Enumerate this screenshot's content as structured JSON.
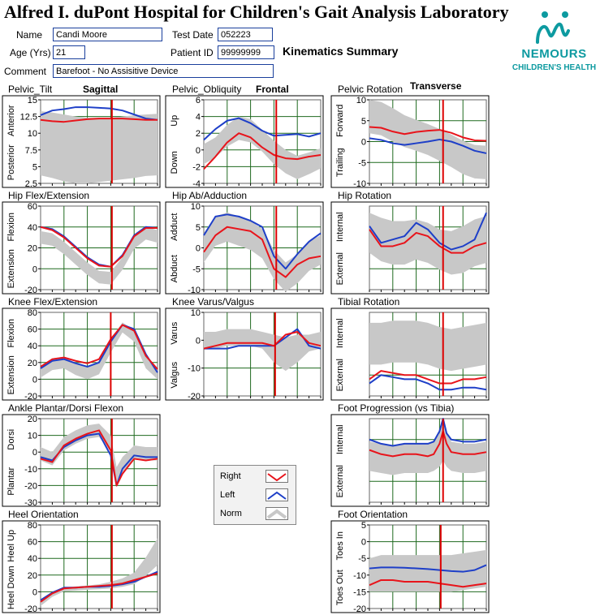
{
  "header": {
    "title": "Alfred I. duPont Hospital for Children's Gait Analysis Laboratory",
    "summary": "Kinematics Summary",
    "logo_name": "NEMOURS",
    "logo_sub": "CHILDREN'S HEALTH",
    "fields": {
      "name_label": "Name",
      "name": "Candi Moore",
      "test_date_label": "Test Date",
      "test_date": "052223",
      "age_label": "Age (Yrs)",
      "age": "21",
      "patient_id_label": "Patient ID",
      "patient_id": "99999999",
      "comment_label": "Comment",
      "comment": "Barefoot - No Assisitive Device"
    }
  },
  "planes": {
    "sagittal": "Sagittal",
    "frontal": "Frontal",
    "transverse": "Transverse"
  },
  "legend": {
    "right": "Right",
    "left": "Left",
    "norm": "Norm"
  },
  "colors": {
    "right": "#e8141b",
    "left": "#1e3fc8",
    "norm": "#c8c8c8",
    "grid": "#1f6a1f",
    "toe_off_line": "#dd0000"
  },
  "chart_data": [
    {
      "id": "pelvic-tilt",
      "type": "line",
      "title": "Pelvic_Tilt",
      "ylim": [
        2.5,
        15
      ],
      "yticks": [
        "15",
        "12.5",
        "10",
        "7.5",
        "5",
        "2.5"
      ],
      "ylabel_top": "Anterior",
      "ylabel_bottom": "Posterior",
      "toe_off": 61,
      "x": [
        0,
        10,
        20,
        30,
        40,
        50,
        60,
        70,
        80,
        90,
        100
      ],
      "right": [
        12,
        11.8,
        11.7,
        11.9,
        12.1,
        12.2,
        12.2,
        12.2,
        12.1,
        12,
        12
      ],
      "left": [
        12.7,
        13.4,
        13.6,
        13.9,
        13.9,
        13.8,
        13.7,
        13.4,
        12.8,
        12.2,
        12
      ],
      "norm_mean": [
        8.5,
        8.2,
        7.8,
        7.5,
        7.4,
        7.5,
        7.6,
        7.8,
        8,
        8.2,
        8.3
      ],
      "norm_sd": [
        4.8,
        4.9,
        5,
        5,
        4.9,
        4.8,
        4.7,
        4.7,
        4.7,
        4.6,
        4.6
      ]
    },
    {
      "id": "pelvic-obliquity",
      "type": "line",
      "title": "Pelvic_Obliquity",
      "ylim": [
        -4,
        6
      ],
      "yticks": [
        "6",
        "4",
        "2",
        "0",
        "-2",
        "-4"
      ],
      "ylabel_top": "Up",
      "ylabel_bottom": "Down",
      "toe_off": 62,
      "x": [
        0,
        10,
        20,
        30,
        40,
        50,
        60,
        70,
        80,
        90,
        100
      ],
      "right": [
        -2.3,
        -0.8,
        0.9,
        2,
        1.5,
        0.3,
        -0.6,
        -1,
        -1.1,
        -0.8,
        -0.6
      ],
      "left": [
        1.2,
        2.5,
        3.5,
        3.8,
        3.2,
        2.3,
        1.7,
        1.8,
        1.9,
        1.6,
        2
      ],
      "norm_mean": [
        -0.5,
        0.3,
        1.7,
        2.6,
        2.3,
        1.1,
        -0.3,
        -1.4,
        -2.1,
        -1.6,
        -1
      ],
      "norm_sd": [
        1.2,
        1.2,
        1.3,
        1.4,
        1.4,
        1.3,
        1.4,
        1.4,
        1.4,
        1.3,
        1.2
      ]
    },
    {
      "id": "pelvic-rotation",
      "type": "line",
      "title": "Pelvic Rotation",
      "ylim": [
        -10,
        10
      ],
      "yticks": [
        "10",
        "5",
        "0",
        "-5",
        "-10"
      ],
      "ylabel_top": "Forward",
      "ylabel_bottom": "Trailing",
      "toe_off": 63,
      "x": [
        0,
        10,
        20,
        30,
        40,
        50,
        60,
        70,
        80,
        90,
        100
      ],
      "right": [
        3.5,
        3.3,
        2.4,
        1.8,
        2.3,
        2.6,
        2.8,
        2.1,
        1,
        0.3,
        0.2
      ],
      "left": [
        0.8,
        0.4,
        -0.4,
        -0.8,
        -0.4,
        0,
        0.5,
        0,
        -1,
        -2.2,
        -2.8
      ],
      "norm_mean": [
        6,
        5.5,
        4,
        2.5,
        1.5,
        0.5,
        -0.8,
        -2.2,
        -3.8,
        -4.8,
        -5
      ],
      "norm_sd": [
        4,
        4,
        4,
        3.8,
        3.7,
        3.7,
        3.8,
        3.9,
        4,
        4,
        4
      ]
    },
    {
      "id": "hip-flex-extension",
      "type": "line",
      "title": "Hip Flex/Extension",
      "ylim": [
        -20,
        60
      ],
      "yticks": [
        "60",
        "40",
        "20",
        "0",
        "-20"
      ],
      "ylabel_top": "Flexion",
      "ylabel_bottom": "Extension",
      "toe_off": 61,
      "x": [
        0,
        10,
        20,
        30,
        40,
        50,
        60,
        70,
        80,
        90,
        100
      ],
      "right": [
        40,
        37,
        30,
        20,
        10,
        3,
        2,
        12,
        31,
        39,
        39
      ],
      "left": [
        40,
        38,
        31,
        21,
        11,
        4,
        2,
        13,
        32,
        40,
        39
      ],
      "norm_mean": [
        30,
        28,
        20,
        10,
        0,
        -8,
        -9,
        5,
        25,
        34,
        31
      ],
      "norm_sd": [
        6,
        6,
        6,
        6,
        6,
        6,
        6,
        6,
        6,
        6,
        6
      ]
    },
    {
      "id": "hip-ab-adduction",
      "type": "line",
      "title": "Hip Ab/Adduction",
      "ylim": [
        -10,
        10
      ],
      "yticks": [
        "10",
        "5",
        "0",
        "-5",
        "-10"
      ],
      "ylabel_top": "Adduct",
      "ylabel_bottom": "Abduct",
      "toe_off": 62,
      "x": [
        0,
        10,
        20,
        30,
        40,
        50,
        60,
        70,
        80,
        90,
        100
      ],
      "right": [
        -1,
        3,
        5,
        4.5,
        4,
        2,
        -5,
        -7,
        -4,
        -2.5,
        -2
      ],
      "left": [
        3,
        7.5,
        8,
        7.5,
        6.5,
        5,
        -2,
        -5,
        -1.5,
        1.5,
        3.5
      ],
      "norm_mean": [
        0,
        4,
        5,
        4,
        3,
        1,
        -4,
        -7,
        -5,
        -2,
        -0.5
      ],
      "norm_sd": [
        3.5,
        3.5,
        3.5,
        3.5,
        3.5,
        3.5,
        3.5,
        3.5,
        3.5,
        3.5,
        3.5
      ]
    },
    {
      "id": "hip-rotation",
      "type": "line",
      "title": "Hip Rotation",
      "ylim": [
        -15,
        10
      ],
      "yticks": [],
      "ylabel_top": "Internal",
      "ylabel_bottom": "External",
      "toe_off": 63,
      "x": [
        0,
        10,
        20,
        30,
        40,
        50,
        60,
        70,
        80,
        90,
        100
      ],
      "right": [
        3,
        -2,
        -2,
        -1,
        2,
        1,
        -2,
        -4,
        -4,
        -2,
        -1
      ],
      "left": [
        4,
        -1,
        0,
        1,
        5,
        3,
        -1,
        -3,
        -2,
        0,
        8
      ],
      "norm_mean": [
        2,
        0,
        -1,
        -1,
        0,
        -1,
        -3,
        -4,
        -3,
        -1,
        0
      ],
      "norm_sd": [
        6,
        6.5,
        6.5,
        6.5,
        6,
        6,
        6,
        6.5,
        7,
        7,
        7
      ]
    },
    {
      "id": "knee-flex-extension",
      "type": "line",
      "title": "Knee Flex/Extension",
      "ylim": [
        -20,
        80
      ],
      "yticks": [
        "80",
        "60",
        "40",
        "20",
        "0",
        "-20"
      ],
      "ylabel_top": "Flexion",
      "ylabel_bottom": "Extension",
      "toe_off": 60,
      "x": [
        0,
        10,
        20,
        30,
        40,
        50,
        60,
        70,
        80,
        90,
        100
      ],
      "right": [
        15,
        24,
        26,
        22,
        19,
        24,
        48,
        65,
        58,
        28,
        12
      ],
      "left": [
        13,
        22,
        24,
        19,
        15,
        20,
        45,
        65,
        60,
        30,
        8
      ],
      "norm_mean": [
        8,
        18,
        20,
        12,
        7,
        14,
        40,
        62,
        52,
        20,
        6
      ],
      "norm_sd": [
        6,
        7,
        7,
        7,
        7,
        8,
        8,
        6,
        7,
        7,
        6
      ]
    },
    {
      "id": "knee-varus-valgus",
      "type": "line",
      "title": "Knee Varus/Valgus",
      "ylim": [
        -20,
        10
      ],
      "yticks": [
        "10",
        "0",
        "-10",
        "-20"
      ],
      "ylabel_top": "Varus",
      "ylabel_bottom": "Valgus",
      "toe_off": 61,
      "x": [
        0,
        10,
        20,
        30,
        40,
        50,
        60,
        70,
        80,
        90,
        100
      ],
      "right": [
        -3,
        -2,
        -1,
        -1,
        -1,
        -1,
        -2,
        2,
        3,
        -1,
        -2
      ],
      "left": [
        -3,
        -3,
        -3,
        -2,
        -2,
        -2,
        -2,
        1,
        4,
        -2,
        -3
      ],
      "norm_mean": [
        0,
        0,
        1,
        1,
        1,
        0,
        -3,
        -5,
        -3,
        -1,
        0
      ],
      "norm_sd": [
        3,
        3,
        3,
        3,
        3,
        3,
        5,
        6,
        5,
        3,
        3
      ]
    },
    {
      "id": "tibial-rotation",
      "type": "line",
      "title": "Tibial Rotation",
      "ylim": [
        -30,
        10
      ],
      "yticks": [],
      "ylabel_top": "Internal",
      "ylabel_bottom": "External",
      "toe_off": 63,
      "x": [
        0,
        10,
        20,
        30,
        40,
        50,
        60,
        70,
        80,
        90,
        100
      ],
      "right": [
        -22,
        -18,
        -19,
        -20,
        -20,
        -22,
        -24,
        -24,
        -22,
        -22,
        -21
      ],
      "left": [
        -24,
        -20,
        -21,
        -22,
        -22,
        -24,
        -27,
        -27,
        -26,
        -26,
        -27
      ],
      "norm_mean": [
        -5,
        -5,
        -4,
        -4,
        -4,
        -5,
        -7,
        -8,
        -7,
        -6,
        -5
      ],
      "norm_sd": [
        10,
        10,
        10,
        10,
        10,
        10,
        10,
        10,
        10,
        10,
        10
      ]
    },
    {
      "id": "ankle-plantar-dorsi",
      "type": "line",
      "title": "Ankle Plantar/Dorsi Flexon",
      "ylim": [
        -30,
        20
      ],
      "yticks": [
        "20",
        "10",
        "0",
        "-10",
        "-20",
        "-30"
      ],
      "ylabel_top": "Dorsi",
      "ylabel_bottom": "Plantar",
      "toe_off": 61,
      "x": [
        0,
        10,
        20,
        30,
        40,
        50,
        60,
        65,
        70,
        80,
        90,
        100
      ],
      "right": [
        -4,
        -6,
        4,
        8,
        11,
        13,
        1,
        -20,
        -13,
        -4,
        -5,
        -4
      ],
      "left": [
        -3,
        -5,
        3,
        7,
        10,
        11,
        -2,
        -20,
        -10,
        -2,
        -3,
        -3
      ],
      "norm_mean": [
        -1,
        -4,
        5,
        9,
        12,
        13,
        5,
        -15,
        -8,
        0,
        -1,
        -1
      ],
      "norm_sd": [
        4,
        4,
        4,
        4,
        4,
        4,
        5,
        6,
        5,
        4,
        4,
        4
      ]
    },
    {
      "id": "foot-progression",
      "type": "line",
      "title": "Foot Progression (vs Tibia)",
      "ylim": [
        -20,
        20
      ],
      "yticks": [],
      "ylabel_top": "Internal",
      "ylabel_bottom": "External",
      "toe_off": 63,
      "x": [
        0,
        10,
        20,
        30,
        40,
        50,
        55,
        60,
        63,
        66,
        70,
        80,
        90,
        100
      ],
      "right": [
        5,
        3,
        2,
        3,
        3,
        2,
        3,
        8,
        14,
        8,
        4,
        3,
        3,
        4
      ],
      "left": [
        10,
        8,
        7,
        8,
        8,
        8,
        9,
        14,
        20,
        13,
        10,
        9,
        9,
        10
      ],
      "norm_mean": [
        2,
        1,
        0,
        1,
        1,
        1,
        2,
        5,
        9,
        5,
        2,
        1,
        1,
        2
      ],
      "norm_sd": [
        7,
        7,
        7,
        7,
        7,
        7,
        7,
        8,
        9,
        8,
        7,
        7,
        7,
        7
      ]
    },
    {
      "id": "heel-orientation",
      "type": "line",
      "title": "Heel Orientation",
      "ylim": [
        -20,
        80
      ],
      "yticks": [
        "80",
        "60",
        "40",
        "20",
        "0",
        "-20"
      ],
      "ylabel_top": "Heel Up",
      "ylabel_bottom": "Heel Down",
      "toe_off": 61,
      "x": [
        0,
        10,
        20,
        30,
        40,
        50,
        60,
        70,
        80,
        90,
        100
      ],
      "right": [
        -12,
        -2,
        4,
        5,
        6,
        7,
        8,
        10,
        14,
        18,
        22
      ],
      "left": [
        -10,
        -1,
        5,
        5,
        6,
        6,
        7,
        9,
        12,
        18,
        24
      ],
      "norm_mean": [
        -14,
        -3,
        3,
        4,
        5,
        6,
        8,
        11,
        16,
        30,
        48
      ],
      "norm_sd": [
        3,
        3,
        2.5,
        2.5,
        2.5,
        3,
        4,
        5,
        7,
        11,
        16
      ]
    },
    {
      "id": "foot-orientation",
      "type": "line",
      "title": "Foot Orientation",
      "ylim": [
        -20,
        5
      ],
      "yticks": [
        "5",
        "0",
        "-5",
        "-10",
        "-15",
        "-20"
      ],
      "ylabel_top": "Toes In",
      "ylabel_bottom": "Toes Out",
      "toe_off": 61,
      "x": [
        0,
        10,
        20,
        30,
        40,
        50,
        60,
        70,
        80,
        90,
        100
      ],
      "right": [
        -13,
        -11.5,
        -11.5,
        -12,
        -12,
        -12,
        -12.5,
        -13,
        -13.5,
        -13,
        -12.5
      ],
      "left": [
        -8,
        -7.7,
        -7.7,
        -7.8,
        -8,
        -8.2,
        -8.5,
        -8.8,
        -9,
        -8.5,
        -7
      ],
      "norm_mean": [
        -10,
        -9.5,
        -9.5,
        -9.5,
        -9.5,
        -9.5,
        -9.5,
        -9.5,
        -9,
        -8.5,
        -8
      ],
      "norm_sd": [
        5,
        5.5,
        5.5,
        5.5,
        5.5,
        5.5,
        5.5,
        5.5,
        5.5,
        5.5,
        5.5
      ]
    }
  ]
}
